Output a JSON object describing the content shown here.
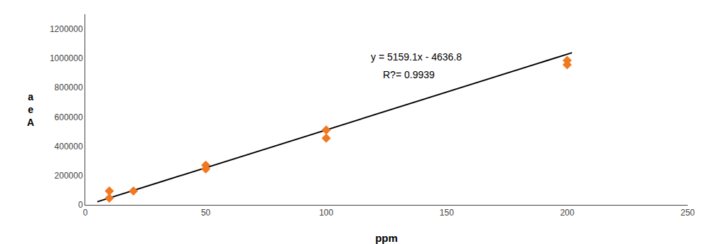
{
  "chart_data": {
    "type": "scatter",
    "xlabel": "ppm",
    "ylabel": "a\ne\nA",
    "series": [
      {
        "type": "scatter",
        "x": [
          10,
          10,
          20,
          50,
          50,
          100,
          100,
          200,
          200
        ],
        "values": [
          46000,
          95000,
          95000,
          245000,
          270000,
          455000,
          510000,
          955000,
          985000
        ],
        "color": "#f07820",
        "marker": "diamond"
      },
      {
        "type": "line",
        "x": [
          5,
          202
        ],
        "values": [
          21158.7,
          1037501.4
        ],
        "color": "black"
      }
    ],
    "annotations": [
      {
        "text": "y = 5159.1x - 4636.8",
        "x": 118,
        "y": 960000
      },
      {
        "text": "R?= 0.9939",
        "x": 123,
        "y": 840000
      }
    ],
    "xlim": [
      0,
      250
    ],
    "ylim": [
      0,
      1300000
    ],
    "xticks": [
      0,
      50,
      100,
      150,
      200,
      250
    ],
    "yticks": [
      0,
      200000,
      400000,
      600000,
      800000,
      1000000,
      1200000
    ],
    "grid": false
  }
}
